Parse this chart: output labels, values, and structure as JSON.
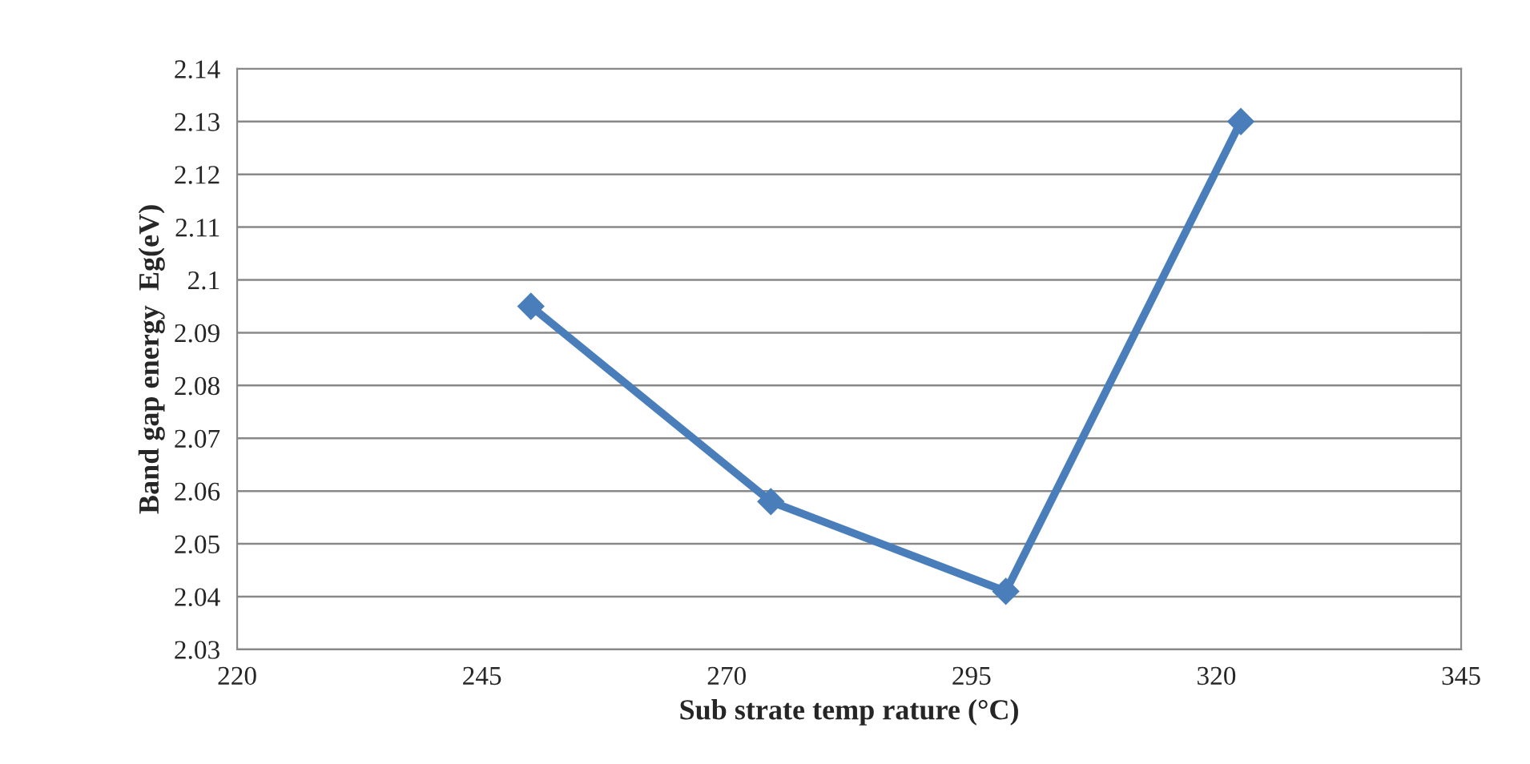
{
  "chart_data": {
    "type": "line",
    "xlabel": "Sub strate temp rature (°C)",
    "ylabel": "Band gap energy  Eg(eV)",
    "x": [
      250,
      274.5,
      298.5,
      322.5
    ],
    "series": [
      {
        "color": "#4a7ebb",
        "values": [
          2.095,
          2.058,
          2.041,
          2.13
        ]
      }
    ],
    "xlim": [
      220,
      345
    ],
    "xticks": [
      220,
      245,
      270,
      295,
      320,
      345
    ],
    "ylim": [
      2.03,
      2.14
    ],
    "yticks": [
      {
        "value": 2.03,
        "label": "2.03"
      },
      {
        "value": 2.04,
        "label": "2.04"
      },
      {
        "value": 2.05,
        "label": "2.05"
      },
      {
        "value": 2.06,
        "label": "2.06"
      },
      {
        "value": 2.07,
        "label": "2.07"
      },
      {
        "value": 2.08,
        "label": "2.08"
      },
      {
        "value": 2.09,
        "label": "2.09"
      },
      {
        "value": 2.1,
        "label": "2.1"
      },
      {
        "value": 2.11,
        "label": "2.11"
      },
      {
        "value": 2.12,
        "label": "2.12"
      },
      {
        "value": 2.13,
        "label": "2.13"
      },
      {
        "value": 2.14,
        "label": "2.14"
      }
    ],
    "grid": "y",
    "marker": "diamond",
    "line_style": "solid"
  }
}
